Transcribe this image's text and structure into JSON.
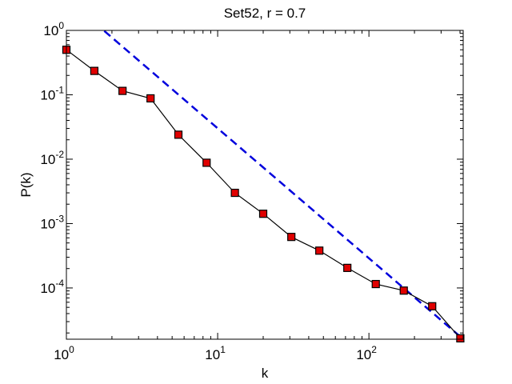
{
  "chart_data": {
    "type": "scatter",
    "title": "Set52, r = 0.7",
    "xlabel": "k",
    "ylabel": "P(k)",
    "xscale": "log",
    "yscale": "log",
    "xlim": [
      1,
      420
    ],
    "ylim": [
      1.6e-05,
      1
    ],
    "grid": false,
    "x_ticks": [
      {
        "value": 1,
        "base": "10",
        "exp": "0"
      },
      {
        "value": 10,
        "base": "10",
        "exp": "1"
      },
      {
        "value": 100,
        "base": "10",
        "exp": "2"
      }
    ],
    "y_ticks": [
      {
        "value": 1,
        "base": "10",
        "exp": "0"
      },
      {
        "value": 0.1,
        "base": "10",
        "exp": "-1"
      },
      {
        "value": 0.01,
        "base": "10",
        "exp": "-2"
      },
      {
        "value": 0.001,
        "base": "10",
        "exp": "-3"
      },
      {
        "value": 0.0001,
        "base": "10",
        "exp": "-4"
      }
    ],
    "series": [
      {
        "style": "black solid line with red square markers",
        "color": "#000000",
        "marker_color": "#e00000",
        "x": [
          1.0,
          1.53,
          2.35,
          3.6,
          5.5,
          8.45,
          13.0,
          20.0,
          30.7,
          47.0,
          72.0,
          111.0,
          170.0,
          262.0,
          402.0
        ],
        "y": [
          0.5,
          0.235,
          0.115,
          0.088,
          0.024,
          0.0088,
          0.003,
          0.00142,
          0.00062,
          0.00038,
          0.000205,
          0.000115,
          9.1e-05,
          5.2e-05,
          1.65e-05
        ]
      },
      {
        "style": "blue dashed line",
        "color": "#0000dd",
        "x": [
          1.78,
          402.0
        ],
        "y": [
          0.98,
          1.75e-05
        ]
      }
    ]
  }
}
